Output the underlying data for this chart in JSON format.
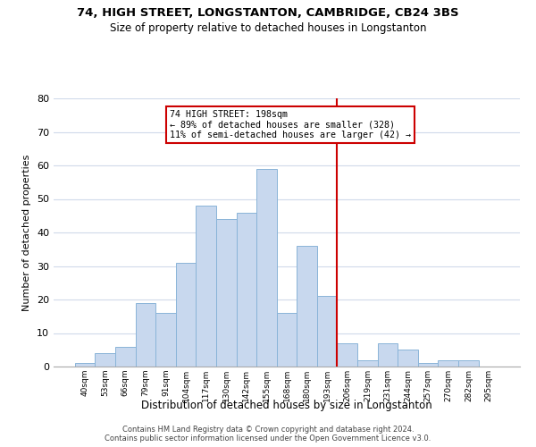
{
  "title": "74, HIGH STREET, LONGSTANTON, CAMBRIDGE, CB24 3BS",
  "subtitle": "Size of property relative to detached houses in Longstanton",
  "xlabel": "Distribution of detached houses by size in Longstanton",
  "ylabel": "Number of detached properties",
  "bar_labels": [
    "40sqm",
    "53sqm",
    "66sqm",
    "79sqm",
    "91sqm",
    "104sqm",
    "117sqm",
    "130sqm",
    "142sqm",
    "155sqm",
    "168sqm",
    "180sqm",
    "193sqm",
    "206sqm",
    "219sqm",
    "231sqm",
    "244sqm",
    "257sqm",
    "270sqm",
    "282sqm",
    "295sqm"
  ],
  "bar_values": [
    1,
    4,
    6,
    19,
    16,
    31,
    48,
    44,
    46,
    59,
    16,
    36,
    21,
    7,
    2,
    7,
    5,
    1,
    2,
    2,
    0
  ],
  "bar_color": "#c8d8ee",
  "bar_edge_color": "#8ab4d8",
  "vline_color": "#cc0000",
  "annotation_text": "74 HIGH STREET: 198sqm\n← 89% of detached houses are smaller (328)\n11% of semi-detached houses are larger (42) →",
  "annotation_box_color": "#ffffff",
  "annotation_box_edge": "#cc0000",
  "ylim": [
    0,
    80
  ],
  "yticks": [
    0,
    10,
    20,
    30,
    40,
    50,
    60,
    70,
    80
  ],
  "footer_text": "Contains HM Land Registry data © Crown copyright and database right 2024.\nContains public sector information licensed under the Open Government Licence v3.0.",
  "bg_color": "#ffffff",
  "grid_color": "#d0daea"
}
